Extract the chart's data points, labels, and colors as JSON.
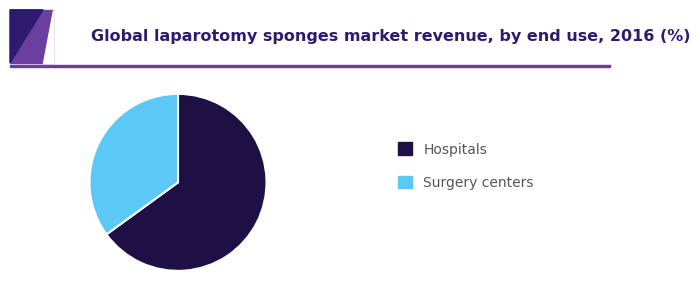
{
  "title": "Global laparotomy sponges market revenue, by end use, 2016 (%)",
  "slices": [
    65.0,
    35.0
  ],
  "labels": [
    "Hospitals",
    "Surgery centers"
  ],
  "colors": [
    "#1e1045",
    "#5bc8f5"
  ],
  "startangle": 90,
  "legend_labels": [
    "Hospitals",
    "Surgery centers"
  ],
  "background_color": "#ffffff",
  "title_fontsize": 11.5,
  "title_color": "#2e1a6e",
  "legend_fontsize": 10,
  "legend_color": "#555555",
  "header_line_color": "#6a3d9e",
  "corner_color1": "#6b3fa0",
  "corner_color2": "#2e1a6e"
}
